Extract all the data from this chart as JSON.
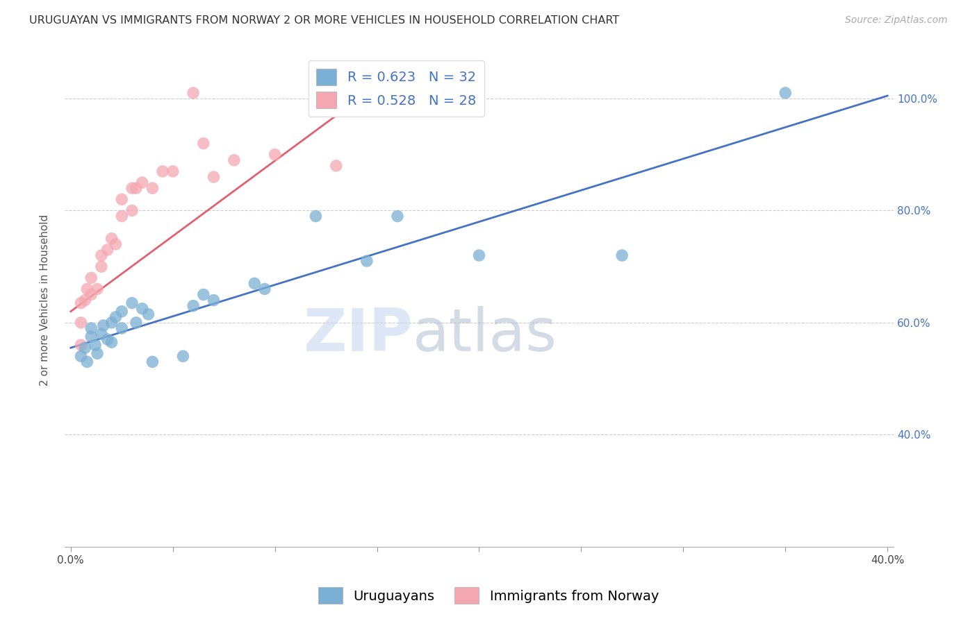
{
  "title": "URUGUAYAN VS IMMIGRANTS FROM NORWAY 2 OR MORE VEHICLES IN HOUSEHOLD CORRELATION CHART",
  "source": "Source: ZipAtlas.com",
  "ylabel": "2 or more Vehicles in Household",
  "watermark_zip": "ZIP",
  "watermark_atlas": "atlas",
  "xlim": [
    0.0,
    0.4
  ],
  "ylim": [
    0.2,
    1.08
  ],
  "xtick_labels": [
    "0.0%",
    "",
    "",
    "",
    "",
    "",
    "",
    "",
    "40.0%"
  ],
  "xtick_values": [
    0.0,
    0.05,
    0.1,
    0.15,
    0.2,
    0.25,
    0.3,
    0.35,
    0.4
  ],
  "ytick_labels": [
    "40.0%",
    "60.0%",
    "80.0%",
    "100.0%"
  ],
  "ytick_values": [
    0.4,
    0.6,
    0.8,
    1.0
  ],
  "legend_label1": "Uruguayans",
  "legend_label2": "Immigrants from Norway",
  "R1": 0.623,
  "N1": 32,
  "R2": 0.528,
  "N2": 28,
  "color_blue": "#7BAFD4",
  "color_pink": "#F4A7B0",
  "color_blue_dark": "#4472C4",
  "color_pink_dark": "#E06070",
  "color_blue_text": "#4472C4",
  "title_fontsize": 11.5,
  "source_fontsize": 10,
  "legend_fontsize": 14,
  "axis_label_fontsize": 11,
  "tick_fontsize": 11,
  "blue_scatter_x": [
    0.005,
    0.007,
    0.008,
    0.01,
    0.01,
    0.012,
    0.013,
    0.015,
    0.016,
    0.018,
    0.02,
    0.02,
    0.022,
    0.025,
    0.025,
    0.03,
    0.032,
    0.035,
    0.038,
    0.04,
    0.055,
    0.06,
    0.065,
    0.07,
    0.09,
    0.095,
    0.12,
    0.145,
    0.16,
    0.2,
    0.27,
    0.35
  ],
  "blue_scatter_y": [
    0.54,
    0.555,
    0.53,
    0.575,
    0.59,
    0.56,
    0.545,
    0.58,
    0.595,
    0.57,
    0.565,
    0.6,
    0.61,
    0.62,
    0.59,
    0.635,
    0.6,
    0.625,
    0.615,
    0.53,
    0.54,
    0.63,
    0.65,
    0.64,
    0.67,
    0.66,
    0.79,
    0.71,
    0.79,
    0.72,
    0.72,
    1.01
  ],
  "pink_scatter_x": [
    0.005,
    0.005,
    0.005,
    0.007,
    0.008,
    0.01,
    0.01,
    0.013,
    0.015,
    0.015,
    0.018,
    0.02,
    0.022,
    0.025,
    0.025,
    0.03,
    0.03,
    0.032,
    0.035,
    0.04,
    0.045,
    0.05,
    0.06,
    0.065,
    0.07,
    0.08,
    0.1,
    0.13
  ],
  "pink_scatter_y": [
    0.56,
    0.6,
    0.635,
    0.64,
    0.66,
    0.65,
    0.68,
    0.66,
    0.7,
    0.72,
    0.73,
    0.75,
    0.74,
    0.79,
    0.82,
    0.8,
    0.84,
    0.84,
    0.85,
    0.84,
    0.87,
    0.87,
    1.01,
    0.92,
    0.86,
    0.89,
    0.9,
    0.88
  ],
  "blue_line_x": [
    0.0,
    0.4
  ],
  "blue_line_y": [
    0.555,
    1.005
  ],
  "pink_line_x": [
    0.0,
    0.145
  ],
  "pink_line_y": [
    0.62,
    1.01
  ]
}
